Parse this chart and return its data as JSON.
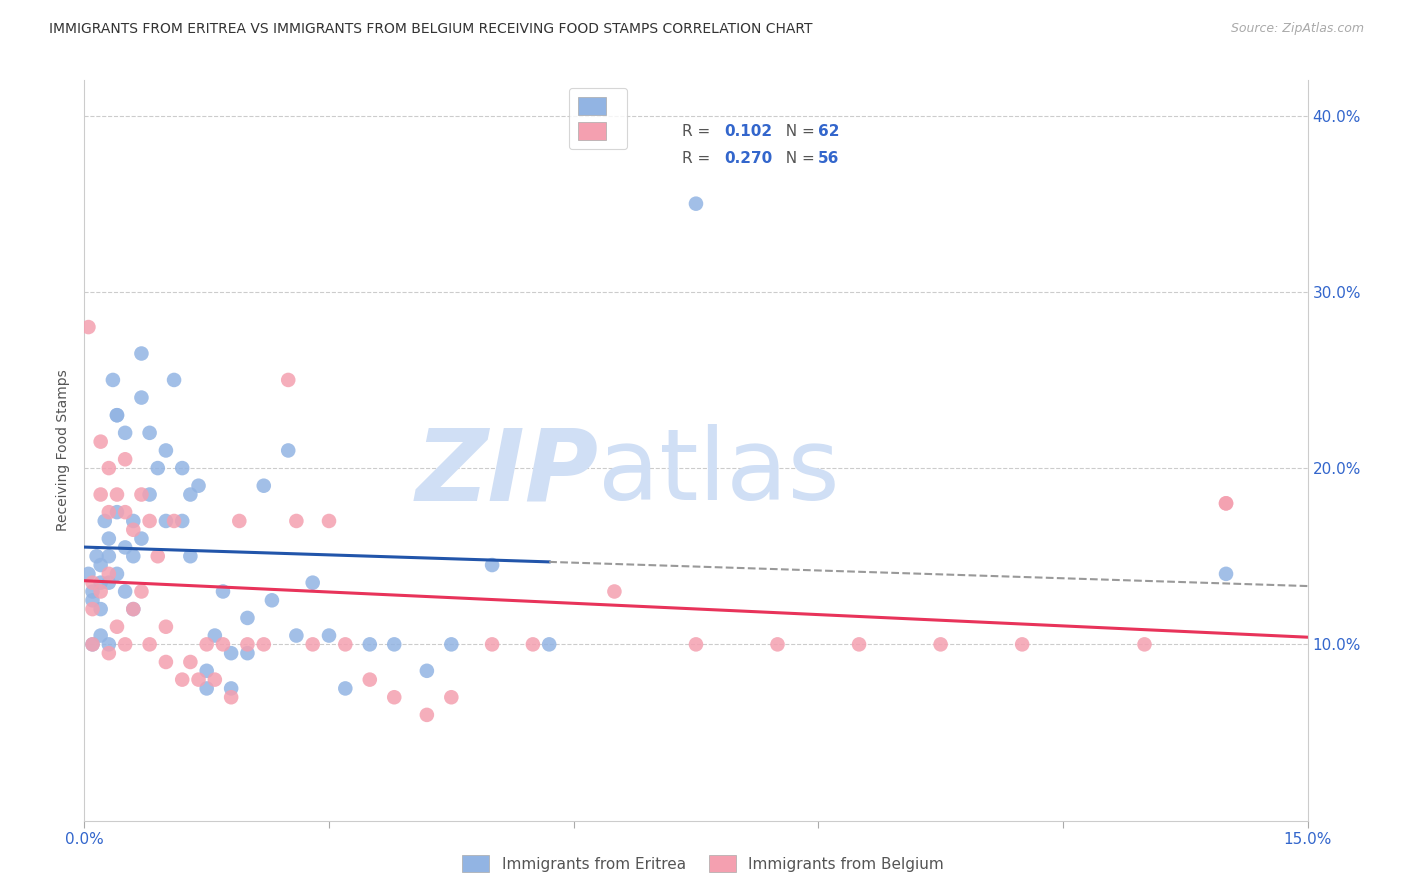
{
  "title": "IMMIGRANTS FROM ERITREA VS IMMIGRANTS FROM BELGIUM RECEIVING FOOD STAMPS CORRELATION CHART",
  "source": "Source: ZipAtlas.com",
  "ylabel": "Receiving Food Stamps",
  "legend_eritrea": "Immigrants from Eritrea",
  "legend_belgium": "Immigrants from Belgium",
  "R_eritrea": "0.102",
  "N_eritrea": "62",
  "R_belgium": "0.270",
  "N_belgium": "56",
  "color_eritrea": "#92b4e3",
  "color_belgium": "#f4a0b0",
  "line_color_eritrea": "#2255aa",
  "line_color_belgium": "#e8335a",
  "line_color_dash": "#999999",
  "watermark_color": "#d0dff5",
  "xlim": [
    0.0,
    0.15
  ],
  "ylim": [
    0.0,
    0.42
  ],
  "eritrea_x": [
    0.0005,
    0.001,
    0.001,
    0.001,
    0.0015,
    0.002,
    0.002,
    0.002,
    0.002,
    0.0025,
    0.003,
    0.003,
    0.003,
    0.003,
    0.0035,
    0.004,
    0.004,
    0.004,
    0.004,
    0.005,
    0.005,
    0.005,
    0.006,
    0.006,
    0.006,
    0.007,
    0.007,
    0.007,
    0.008,
    0.008,
    0.009,
    0.01,
    0.01,
    0.011,
    0.012,
    0.012,
    0.013,
    0.013,
    0.014,
    0.015,
    0.015,
    0.016,
    0.017,
    0.018,
    0.018,
    0.02,
    0.02,
    0.022,
    0.023,
    0.025,
    0.026,
    0.028,
    0.03,
    0.032,
    0.035,
    0.038,
    0.042,
    0.045,
    0.05,
    0.057,
    0.075,
    0.14
  ],
  "eritrea_y": [
    0.14,
    0.13,
    0.125,
    0.1,
    0.15,
    0.145,
    0.135,
    0.12,
    0.105,
    0.17,
    0.16,
    0.15,
    0.135,
    0.1,
    0.25,
    0.23,
    0.175,
    0.14,
    0.23,
    0.22,
    0.155,
    0.13,
    0.17,
    0.15,
    0.12,
    0.265,
    0.24,
    0.16,
    0.22,
    0.185,
    0.2,
    0.21,
    0.17,
    0.25,
    0.2,
    0.17,
    0.185,
    0.15,
    0.19,
    0.085,
    0.075,
    0.105,
    0.13,
    0.095,
    0.075,
    0.115,
    0.095,
    0.19,
    0.125,
    0.21,
    0.105,
    0.135,
    0.105,
    0.075,
    0.1,
    0.1,
    0.085,
    0.1,
    0.145,
    0.1,
    0.35,
    0.14
  ],
  "belgium_x": [
    0.0005,
    0.001,
    0.001,
    0.001,
    0.002,
    0.002,
    0.002,
    0.003,
    0.003,
    0.003,
    0.003,
    0.004,
    0.004,
    0.005,
    0.005,
    0.005,
    0.006,
    0.006,
    0.007,
    0.007,
    0.008,
    0.008,
    0.009,
    0.01,
    0.01,
    0.011,
    0.012,
    0.013,
    0.014,
    0.015,
    0.016,
    0.017,
    0.018,
    0.019,
    0.02,
    0.022,
    0.025,
    0.026,
    0.028,
    0.03,
    0.032,
    0.035,
    0.038,
    0.042,
    0.045,
    0.05,
    0.055,
    0.065,
    0.075,
    0.085,
    0.095,
    0.105,
    0.115,
    0.13,
    0.14,
    0.14
  ],
  "belgium_y": [
    0.28,
    0.135,
    0.12,
    0.1,
    0.215,
    0.185,
    0.13,
    0.2,
    0.175,
    0.14,
    0.095,
    0.185,
    0.11,
    0.205,
    0.175,
    0.1,
    0.165,
    0.12,
    0.185,
    0.13,
    0.17,
    0.1,
    0.15,
    0.11,
    0.09,
    0.17,
    0.08,
    0.09,
    0.08,
    0.1,
    0.08,
    0.1,
    0.07,
    0.17,
    0.1,
    0.1,
    0.25,
    0.17,
    0.1,
    0.17,
    0.1,
    0.08,
    0.07,
    0.06,
    0.07,
    0.1,
    0.1,
    0.13,
    0.1,
    0.1,
    0.1,
    0.1,
    0.1,
    0.1,
    0.18,
    0.18
  ]
}
